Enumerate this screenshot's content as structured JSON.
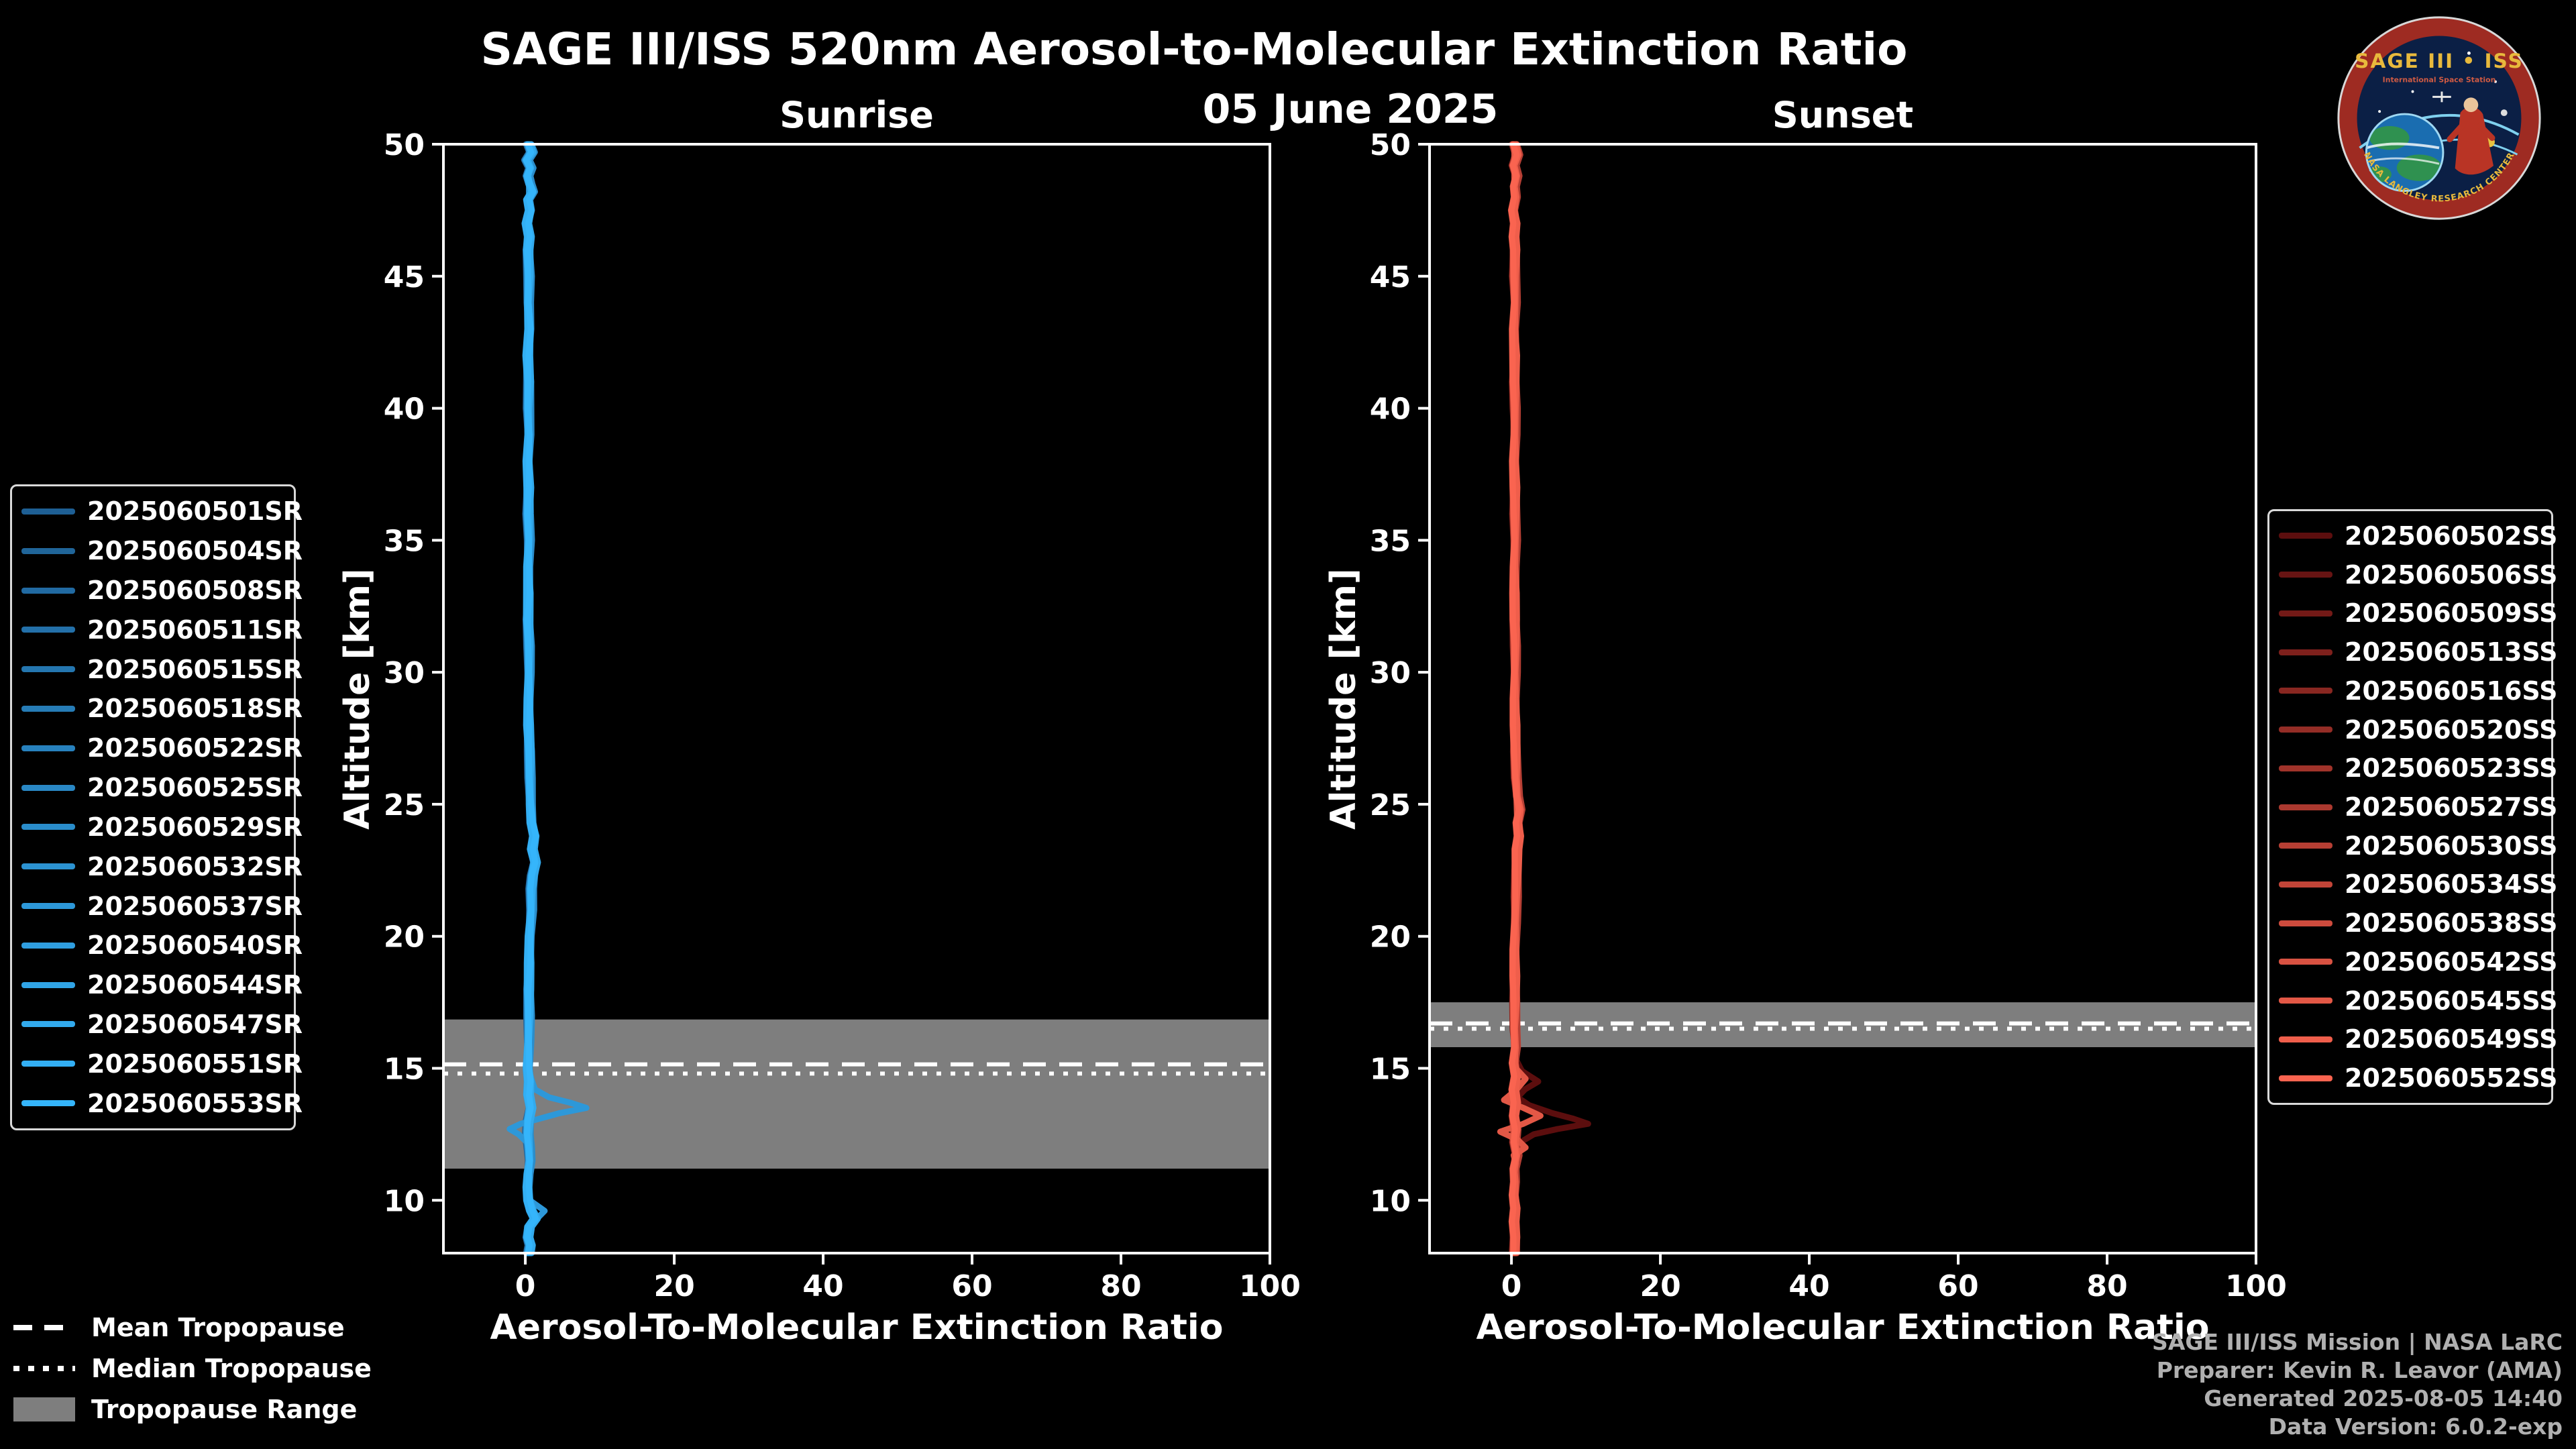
{
  "page": {
    "background": "#000000",
    "foreground": "#ffffff"
  },
  "header": {
    "title": "SAGE III/ISS 520nm Aerosol-to-Molecular Extinction Ratio",
    "date": "05 June 2025"
  },
  "logo": {
    "title": "SAGE III • ISS",
    "subtitle": "International Space Station",
    "ring_text": "NASA LANGLEY RESEARCH CENTER"
  },
  "tropopause_legend": {
    "mean": "Mean Tropopause",
    "median": "Median Tropopause",
    "range": "Tropopause Range",
    "range_color": "#7e7e7e"
  },
  "footer": {
    "lines": [
      "SAGE III/ISS Mission | NASA LaRC",
      "Preparer: Kevin R. Leavor (AMA)",
      "Generated 2025-08-05 14:40",
      "Data Version: 6.0.2-exp"
    ]
  },
  "chart_data": [
    {
      "type": "line",
      "title": "Sunrise",
      "xlabel": "Aerosol-To-Molecular Extinction Ratio",
      "ylabel": "Altitude [km]",
      "xlim": [
        -11,
        100
      ],
      "ylim": [
        8,
        50
      ],
      "xticks": [
        0,
        20,
        40,
        60,
        80,
        100
      ],
      "yticks": [
        10,
        15,
        20,
        25,
        30,
        35,
        40,
        45,
        50
      ],
      "grid": false,
      "tropopause": {
        "mean_km": 15.15,
        "median_km": 14.8,
        "range_km": [
          11.2,
          16.85
        ],
        "band_color": "#7e7e7e"
      },
      "series": [
        {
          "label": "2025060501SR",
          "color": "#1E5F94"
        },
        {
          "label": "2025060504SR",
          "color": "#206599"
        },
        {
          "label": "2025060508SR",
          "color": "#216AA2"
        },
        {
          "label": "2025060511SR",
          "color": "#2370A9"
        },
        {
          "label": "2025060515SR",
          "color": "#2476AF"
        },
        {
          "label": "2025060518SR",
          "color": "#267CB6"
        },
        {
          "label": "2025060522SR",
          "color": "#2781BD"
        },
        {
          "label": "2025060525SR",
          "color": "#2987C4"
        },
        {
          "label": "2025060529SR",
          "color": "#2A8DCB"
        },
        {
          "label": "2025060532SR",
          "color": "#2C93D2"
        },
        {
          "label": "2025060537SR",
          "color": "#2D98D9"
        },
        {
          "label": "2025060540SR",
          "color": "#2F9EE0"
        },
        {
          "label": "2025060544SR",
          "color": "#30A4E6"
        },
        {
          "label": "2025060547SR",
          "color": "#32AAED"
        },
        {
          "label": "2025060551SR",
          "color": "#33AFF4"
        },
        {
          "label": "2025060553SR",
          "color": "#35B5FB"
        }
      ],
      "profiles": {
        "base": [
          [
            50,
            0.5
          ],
          [
            49.7,
            0.9
          ],
          [
            49.4,
            0.2
          ],
          [
            49.1,
            0.7
          ],
          [
            48.8,
            0.3
          ],
          [
            48.5,
            0.6
          ],
          [
            48.2,
            1.0
          ],
          [
            47.9,
            0.4
          ],
          [
            47.5,
            0.7
          ],
          [
            47,
            0.3
          ],
          [
            46.5,
            0.6
          ],
          [
            46,
            0.4
          ],
          [
            45,
            0.5
          ],
          [
            44,
            0.4
          ],
          [
            43,
            0.6
          ],
          [
            42,
            0.4
          ],
          [
            41,
            0.5
          ],
          [
            40,
            0.4
          ],
          [
            39,
            0.5
          ],
          [
            38,
            0.4
          ],
          [
            37,
            0.5
          ],
          [
            36,
            0.4
          ],
          [
            35,
            0.5
          ],
          [
            34,
            0.4
          ],
          [
            33,
            0.5
          ],
          [
            32,
            0.4
          ],
          [
            31,
            0.5
          ],
          [
            30,
            0.5
          ],
          [
            29,
            0.5
          ],
          [
            28,
            0.5
          ],
          [
            27,
            0.6
          ],
          [
            26,
            0.6
          ],
          [
            25,
            0.7
          ],
          [
            24.3,
            0.9
          ],
          [
            23.8,
            1.3
          ],
          [
            23.3,
            1.0
          ],
          [
            22.8,
            1.4
          ],
          [
            22.3,
            1.0
          ],
          [
            21.8,
            0.8
          ],
          [
            21,
            0.8
          ],
          [
            20,
            0.6
          ],
          [
            19,
            0.6
          ],
          [
            18,
            0.5
          ],
          [
            17,
            0.5
          ],
          [
            16,
            0.45
          ],
          [
            15,
            0.4
          ],
          [
            14.5,
            0.6
          ],
          [
            14,
            0.5
          ],
          [
            13.5,
            0.8
          ],
          [
            13,
            0.45
          ],
          [
            12.5,
            0.35
          ],
          [
            12,
            0.5
          ],
          [
            11.5,
            0.6
          ],
          [
            11,
            0.4
          ],
          [
            10.5,
            0.35
          ],
          [
            10,
            0.5
          ],
          [
            9.6,
            0.9
          ],
          [
            9.3,
            1.4
          ],
          [
            9,
            0.6
          ],
          [
            8.6,
            0.4
          ],
          [
            8.3,
            0.7
          ],
          [
            8,
            0.5
          ]
        ],
        "spike": [
          [
            50,
            0.5
          ],
          [
            48,
            0.5
          ],
          [
            46,
            0.5
          ],
          [
            44,
            0.45
          ],
          [
            42,
            0.45
          ],
          [
            40,
            0.45
          ],
          [
            38,
            0.45
          ],
          [
            36,
            0.45
          ],
          [
            34,
            0.45
          ],
          [
            32,
            0.45
          ],
          [
            30,
            0.5
          ],
          [
            28,
            0.5
          ],
          [
            26,
            0.6
          ],
          [
            25,
            0.7
          ],
          [
            24,
            0.9
          ],
          [
            23,
            1.1
          ],
          [
            22,
            0.9
          ],
          [
            21,
            0.7
          ],
          [
            20,
            0.6
          ],
          [
            19,
            0.55
          ],
          [
            18,
            0.5
          ],
          [
            17,
            0.5
          ],
          [
            16,
            0.45
          ],
          [
            15.4,
            0.4
          ],
          [
            15,
            0.45
          ],
          [
            14.6,
            0.8
          ],
          [
            14.2,
            1.3
          ],
          [
            13.9,
            3.2
          ],
          [
            13.7,
            6.0
          ],
          [
            13.5,
            8.2
          ],
          [
            13.3,
            4.6
          ],
          [
            13.1,
            2.0
          ],
          [
            12.9,
            -0.6
          ],
          [
            12.7,
            -2.1
          ],
          [
            12.5,
            -0.9
          ],
          [
            12.2,
            0.2
          ],
          [
            12,
            0.5
          ],
          [
            11.5,
            0.5
          ],
          [
            11,
            0.4
          ],
          [
            10.5,
            0.4
          ],
          [
            10,
            0.6
          ],
          [
            9.6,
            2.6
          ],
          [
            9.2,
            1.2
          ],
          [
            9,
            0.6
          ],
          [
            8.5,
            0.5
          ],
          [
            8,
            0.5
          ]
        ]
      },
      "anomalies": {
        "10": "spike"
      }
    },
    {
      "type": "line",
      "title": "Sunset",
      "xlabel": "Aerosol-To-Molecular Extinction Ratio",
      "ylabel": "Altitude [km]",
      "xlim": [
        -11,
        100
      ],
      "ylim": [
        8,
        50
      ],
      "xticks": [
        0,
        20,
        40,
        60,
        80,
        100
      ],
      "yticks": [
        10,
        15,
        20,
        25,
        30,
        35,
        40,
        45,
        50
      ],
      "grid": false,
      "tropopause": {
        "mean_km": 16.7,
        "median_km": 16.5,
        "range_km": [
          15.8,
          17.5
        ],
        "band_color": "#7e7e7e"
      },
      "series": [
        {
          "label": "2025060502SS",
          "color": "#5C0E0E"
        },
        {
          "label": "2025060506SS",
          "color": "#671413"
        },
        {
          "label": "2025060509SS",
          "color": "#731A17"
        },
        {
          "label": "2025060513SS",
          "color": "#7E201C"
        },
        {
          "label": "2025060516SS",
          "color": "#892721"
        },
        {
          "label": "2025060520SS",
          "color": "#942D26"
        },
        {
          "label": "2025060523SS",
          "color": "#A0332A"
        },
        {
          "label": "2025060527SS",
          "color": "#AB392F"
        },
        {
          "label": "2025060530SS",
          "color": "#B63F34"
        },
        {
          "label": "2025060534SS",
          "color": "#C24538"
        },
        {
          "label": "2025060538SS",
          "color": "#CD4B3D"
        },
        {
          "label": "2025060542SS",
          "color": "#D85242"
        },
        {
          "label": "2025060545SS",
          "color": "#E35846"
        },
        {
          "label": "2025060549SS",
          "color": "#EF5E4B"
        },
        {
          "label": "2025060552SS",
          "color": "#FA6450"
        }
      ],
      "profiles": {
        "base": [
          [
            50,
            0.4
          ],
          [
            49.6,
            0.8
          ],
          [
            49.2,
            0.3
          ],
          [
            48.8,
            0.7
          ],
          [
            48.4,
            0.4
          ],
          [
            48,
            0.6
          ],
          [
            47.5,
            0.3
          ],
          [
            47,
            0.6
          ],
          [
            46.5,
            0.4
          ],
          [
            46,
            0.5
          ],
          [
            45,
            0.4
          ],
          [
            44,
            0.5
          ],
          [
            43,
            0.4
          ],
          [
            42,
            0.5
          ],
          [
            41,
            0.4
          ],
          [
            40,
            0.45
          ],
          [
            39,
            0.5
          ],
          [
            38,
            0.45
          ],
          [
            37,
            0.5
          ],
          [
            36,
            0.45
          ],
          [
            35,
            0.5
          ],
          [
            34,
            0.45
          ],
          [
            33,
            0.5
          ],
          [
            32,
            0.45
          ],
          [
            31,
            0.5
          ],
          [
            30,
            0.5
          ],
          [
            29,
            0.5
          ],
          [
            28,
            0.55
          ],
          [
            27,
            0.55
          ],
          [
            26,
            0.6
          ],
          [
            25.3,
            0.8
          ],
          [
            24.8,
            1.2
          ],
          [
            24.3,
            0.9
          ],
          [
            23.8,
            1.1
          ],
          [
            23.3,
            0.8
          ],
          [
            22.5,
            0.7
          ],
          [
            21.5,
            0.6
          ],
          [
            20.5,
            0.55
          ],
          [
            19.5,
            0.5
          ],
          [
            18.5,
            0.5
          ],
          [
            17.5,
            0.45
          ],
          [
            16.5,
            0.4
          ],
          [
            15.8,
            0.55
          ],
          [
            15.2,
            0.35
          ],
          [
            14.7,
            0.7
          ],
          [
            14.2,
            0.4
          ],
          [
            13.7,
            0.6
          ],
          [
            13.2,
            0.35
          ],
          [
            12.7,
            0.6
          ],
          [
            12.2,
            0.4
          ],
          [
            11.7,
            0.7
          ],
          [
            11.2,
            0.35
          ],
          [
            10.7,
            0.5
          ],
          [
            10.2,
            0.4
          ],
          [
            9.7,
            0.6
          ],
          [
            9.2,
            0.4
          ],
          [
            8.6,
            0.5
          ],
          [
            8,
            0.4
          ]
        ],
        "zigzag_deep": [
          [
            50,
            0.4
          ],
          [
            47,
            0.4
          ],
          [
            44,
            0.4
          ],
          [
            41,
            0.4
          ],
          [
            38,
            0.4
          ],
          [
            35,
            0.4
          ],
          [
            32,
            0.45
          ],
          [
            30,
            0.5
          ],
          [
            28,
            0.5
          ],
          [
            26,
            0.6
          ],
          [
            25,
            0.7
          ],
          [
            24,
            0.9
          ],
          [
            23,
            0.8
          ],
          [
            22,
            0.7
          ],
          [
            21,
            0.6
          ],
          [
            20,
            0.55
          ],
          [
            19,
            0.5
          ],
          [
            18,
            0.5
          ],
          [
            17,
            0.45
          ],
          [
            16,
            0.4
          ],
          [
            15.4,
            0.5
          ],
          [
            14.9,
            1.4
          ],
          [
            14.5,
            3.6
          ],
          [
            14.2,
            1.8
          ],
          [
            13.9,
            0.8
          ],
          [
            13.6,
            2.4
          ],
          [
            13.3,
            5.5
          ],
          [
            13.1,
            8.2
          ],
          [
            12.9,
            10.3
          ],
          [
            12.7,
            6.2
          ],
          [
            12.5,
            3.0
          ],
          [
            12.2,
            1.2
          ],
          [
            12,
            0.6
          ],
          [
            11.6,
            0.4
          ],
          [
            11.2,
            0.4
          ],
          [
            10.6,
            0.4
          ],
          [
            10,
            0.4
          ],
          [
            9.4,
            0.45
          ],
          [
            8.7,
            0.4
          ],
          [
            8,
            0.4
          ]
        ],
        "zigzag_small": [
          [
            50,
            0.4
          ],
          [
            47,
            0.4
          ],
          [
            44,
            0.4
          ],
          [
            41,
            0.4
          ],
          [
            38,
            0.4
          ],
          [
            35,
            0.4
          ],
          [
            32,
            0.45
          ],
          [
            30,
            0.5
          ],
          [
            28,
            0.5
          ],
          [
            26,
            0.6
          ],
          [
            25,
            0.7
          ],
          [
            24,
            0.8
          ],
          [
            23,
            0.7
          ],
          [
            22,
            0.6
          ],
          [
            21,
            0.6
          ],
          [
            20,
            0.5
          ],
          [
            19,
            0.5
          ],
          [
            18,
            0.5
          ],
          [
            17,
            0.45
          ],
          [
            16,
            0.4
          ],
          [
            15.4,
            0.5
          ],
          [
            15,
            0.6
          ],
          [
            14.6,
            1.9
          ],
          [
            14.2,
            0.7
          ],
          [
            13.8,
            -1.0
          ],
          [
            13.5,
            1.6
          ],
          [
            13.2,
            3.9
          ],
          [
            12.9,
            1.6
          ],
          [
            12.6,
            -1.5
          ],
          [
            12.3,
            0.8
          ],
          [
            12,
            1.9
          ],
          [
            11.7,
            0.3
          ],
          [
            11.4,
            0.6
          ],
          [
            11,
            0.4
          ],
          [
            10.4,
            0.5
          ],
          [
            9.8,
            0.4
          ],
          [
            9.2,
            0.5
          ],
          [
            8.6,
            0.4
          ],
          [
            8,
            0.4
          ]
        ]
      },
      "anomalies": {
        "0": "zigzag_deep",
        "12": "zigzag_small"
      }
    }
  ]
}
